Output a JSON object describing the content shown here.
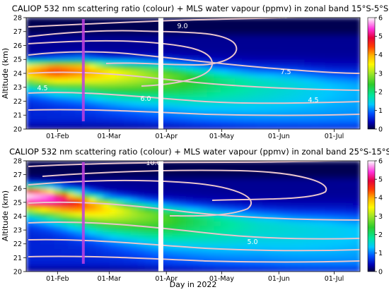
{
  "chart_data": [
    {
      "type": "heatmap",
      "title": "CALIOP 532 nm scattering ratio (colour) + MLS water vapour (ppmv) in zonal band 15°S-5°S",
      "ylabel": "Altitude (km)",
      "xlabel": "",
      "ylim": [
        20,
        28
      ],
      "yticks": [
        "20",
        "21",
        "22",
        "23",
        "24",
        "25",
        "26",
        "27",
        "28"
      ],
      "xticks": [
        "01-Feb",
        "01-Mar",
        "01-Apr",
        "01-May",
        "01-Jun",
        "01-Jul"
      ],
      "xrange_days": [
        15,
        196
      ],
      "colorbar": {
        "range": [
          0,
          6
        ],
        "ticks": [
          "0",
          "1",
          "2",
          "3",
          "4",
          "5",
          "6"
        ]
      },
      "contour_labels": [
        "9.0",
        "7.5",
        "7.5",
        "6.0",
        "4.5",
        "4.5"
      ],
      "data_gap_day": 88,
      "highlight_day": 46,
      "plume": [
        {
          "day": 15,
          "alt": 24.3,
          "ratio": 4.0
        },
        {
          "day": 30,
          "alt": 24.3,
          "ratio": 4.6
        },
        {
          "day": 46,
          "alt": 24.3,
          "ratio": 4.2
        },
        {
          "day": 60,
          "alt": 24.1,
          "ratio": 3.6
        },
        {
          "day": 75,
          "alt": 24.0,
          "ratio": 3.2
        },
        {
          "day": 90,
          "alt": 23.9,
          "ratio": 2.8
        },
        {
          "day": 105,
          "alt": 23.7,
          "ratio": 2.4
        },
        {
          "day": 120,
          "alt": 23.5,
          "ratio": 2.0
        },
        {
          "day": 140,
          "alt": 23.3,
          "ratio": 1.7
        },
        {
          "day": 160,
          "alt": 23.2,
          "ratio": 1.5
        },
        {
          "day": 180,
          "alt": 23.0,
          "ratio": 1.3
        },
        {
          "day": 196,
          "alt": 22.9,
          "ratio": 1.2
        }
      ]
    },
    {
      "type": "heatmap",
      "title": "CALIOP 532 nm scattering ratio (colour) + MLS water vapour (ppmv) in zonal band 25°S-15°S",
      "ylabel": "Altitude (km)",
      "xlabel": "Day in 2022",
      "ylim": [
        20,
        28
      ],
      "yticks": [
        "20",
        "21",
        "22",
        "23",
        "24",
        "25",
        "26",
        "27",
        "28"
      ],
      "xticks": [
        "01-Feb",
        "01-Mar",
        "01-Apr",
        "01-May",
        "01-Jun",
        "01-Jul"
      ],
      "xrange_days": [
        15,
        196
      ],
      "colorbar": {
        "range": [
          0,
          6
        ],
        "ticks": [
          "0",
          "1",
          "2",
          "3",
          "4",
          "5",
          "6"
        ]
      },
      "contour_labels": [
        "10.0",
        "5.0"
      ],
      "data_gap_day": 88,
      "highlight_day": 46,
      "plume": [
        {
          "day": 15,
          "alt": 25.6,
          "ratio": 6.0
        },
        {
          "day": 30,
          "alt": 25.4,
          "ratio": 5.5
        },
        {
          "day": 46,
          "alt": 25.0,
          "ratio": 4.4
        },
        {
          "day": 60,
          "alt": 24.6,
          "ratio": 3.6
        },
        {
          "day": 75,
          "alt": 24.3,
          "ratio": 3.0
        },
        {
          "day": 90,
          "alt": 24.0,
          "ratio": 2.6
        },
        {
          "day": 105,
          "alt": 23.8,
          "ratio": 2.2
        },
        {
          "day": 120,
          "alt": 23.6,
          "ratio": 1.9
        },
        {
          "day": 140,
          "alt": 23.4,
          "ratio": 1.6
        },
        {
          "day": 160,
          "alt": 23.2,
          "ratio": 1.5
        },
        {
          "day": 180,
          "alt": 23.1,
          "ratio": 1.4
        },
        {
          "day": 196,
          "alt": 23.0,
          "ratio": 1.3
        }
      ]
    }
  ]
}
